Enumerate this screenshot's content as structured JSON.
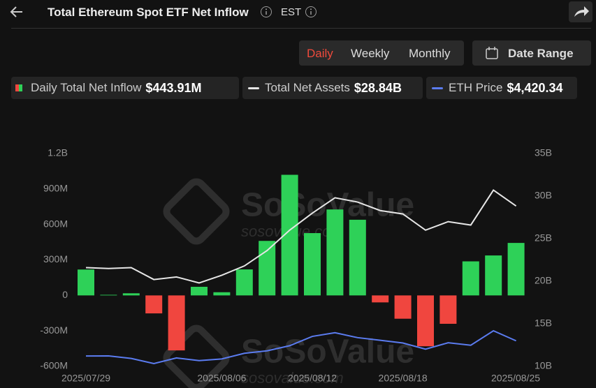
{
  "ui": {
    "title": "Total Ethereum Spot ETF Net Inflow",
    "timezone": "EST",
    "tabs": [
      "Daily",
      "Weekly",
      "Monthly"
    ],
    "date_range": "Date Range",
    "watermark": "SoSoValue",
    "watermark_url": "sosovalue.com"
  },
  "chart_data": {
    "type": "bar-line",
    "categories": [
      "2025/07/29",
      null,
      null,
      null,
      null,
      null,
      "2025/08/06",
      null,
      null,
      null,
      "2025/08/12",
      null,
      null,
      null,
      "2025/08/18",
      null,
      null,
      null,
      null,
      "2025/08/25"
    ],
    "ylim": [
      -600,
      1200
    ],
    "yticks": [
      {
        "value": -600,
        "label": "-600M"
      },
      {
        "value": -300,
        "label": "-300M"
      },
      0,
      {
        "value": 300,
        "label": "300M"
      },
      {
        "value": 600,
        "label": "600M"
      },
      {
        "value": 900,
        "label": "900M"
      },
      {
        "value": 1200,
        "label": "1.2B"
      }
    ],
    "y2lim": [
      10,
      35
    ],
    "y2ticks": [
      {
        "value": 10,
        "label": "10B"
      },
      {
        "value": 15,
        "label": "15B"
      },
      {
        "value": 20,
        "label": "20B"
      },
      {
        "value": 25,
        "label": "25B"
      },
      {
        "value": 30,
        "label": "30B"
      },
      {
        "value": 35,
        "label": "35B"
      }
    ],
    "grid": false,
    "series": [
      {
        "name": "Daily Total Net Inflow",
        "type": "bar",
        "color": "#2ed158",
        "negative_color": "#f0463f",
        "legend_value": "$443.91M",
        "values": [
          219,
          5,
          18,
          -152,
          -465,
          73,
          27,
          220,
          461,
          1020,
          527,
          727,
          640,
          -59,
          -197,
          -430,
          -240,
          288,
          338,
          443.91
        ]
      },
      {
        "name": "Total Net Assets",
        "type": "line",
        "axis": "y2",
        "color": "#e6e6e6",
        "legend_value": "$28.84B",
        "values": [
          21.6,
          21.5,
          21.6,
          20.2,
          20.5,
          19.8,
          20.7,
          21.8,
          23.6,
          26.0,
          28.0,
          29.8,
          29.3,
          28.3,
          27.9,
          26.0,
          27.0,
          26.6,
          30.7,
          28.84
        ]
      },
      {
        "name": "ETH Price",
        "type": "line",
        "axis": "hidden",
        "color": "#5b7cf0",
        "legend_value": "$4,420.34",
        "values": [
          3800,
          3805,
          3700,
          3490,
          3720,
          3610,
          3680,
          3910,
          4010,
          4220,
          4600,
          4750,
          4550,
          4440,
          4330,
          4080,
          4340,
          4240,
          4830,
          4420.34
        ]
      }
    ]
  }
}
